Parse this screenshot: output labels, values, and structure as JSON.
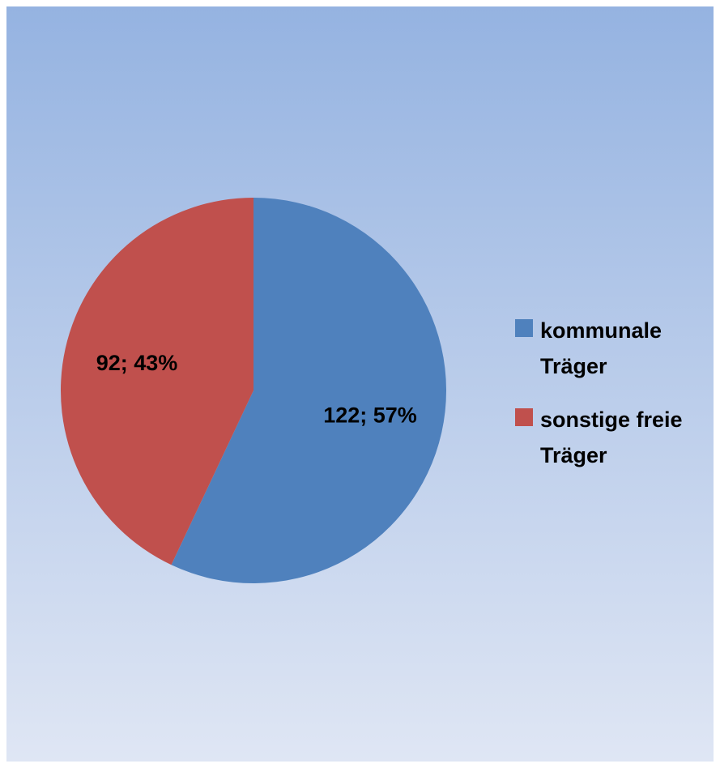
{
  "chart_data": {
    "type": "pie",
    "categories": [
      "kommunale Träger",
      "sonstige freie Träger"
    ],
    "values": [
      122,
      92
    ],
    "value_labels": [
      "122; 57%",
      "92; 43%"
    ],
    "colors": [
      "#4f81bd",
      "#c0504d"
    ],
    "legend": "right"
  }
}
